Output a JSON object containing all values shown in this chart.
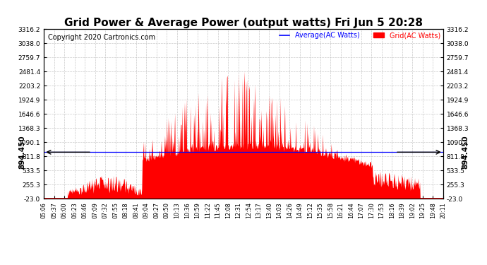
{
  "title": "Grid Power & Average Power (output watts) Fri Jun 5 20:28",
  "copyright": "Copyright 2020 Cartronics.com",
  "legend_labels": [
    "Average(AC Watts)",
    "Grid(AC Watts)"
  ],
  "legend_colors": [
    "blue",
    "red"
  ],
  "ylim": [
    -23.0,
    3316.2
  ],
  "yticks": [
    -23.0,
    255.3,
    533.5,
    811.8,
    1090.1,
    1368.3,
    1646.6,
    1924.9,
    2203.2,
    2481.4,
    2759.7,
    3038.0,
    3316.2
  ],
  "ytick_labels": [
    "-23.0",
    "255.3",
    "533.5",
    "811.8",
    "1090.1",
    "1368.3",
    "1646.6",
    "1924.9",
    "2203.2",
    "2481.4",
    "2759.7",
    "3038.0",
    "3316.2"
  ],
  "average_line_y": 894.45,
  "average_line_label": "894.450",
  "average_line_color": "blue",
  "grid_color": "#aaaaaa",
  "background_color": "white",
  "fill_color": "red",
  "title_fontsize": 11,
  "copyright_fontsize": 7,
  "xtick_labels": [
    "05:06",
    "05:37",
    "06:00",
    "06:23",
    "06:46",
    "07:09",
    "07:32",
    "07:55",
    "08:18",
    "08:41",
    "09:04",
    "09:27",
    "09:50",
    "10:13",
    "10:36",
    "10:59",
    "11:22",
    "11:45",
    "12:08",
    "12:31",
    "12:54",
    "13:17",
    "13:40",
    "14:03",
    "14:26",
    "14:49",
    "15:12",
    "15:35",
    "15:58",
    "16:21",
    "16:44",
    "17:07",
    "17:30",
    "17:53",
    "18:16",
    "18:39",
    "19:02",
    "19:25",
    "19:48",
    "20:11"
  ]
}
